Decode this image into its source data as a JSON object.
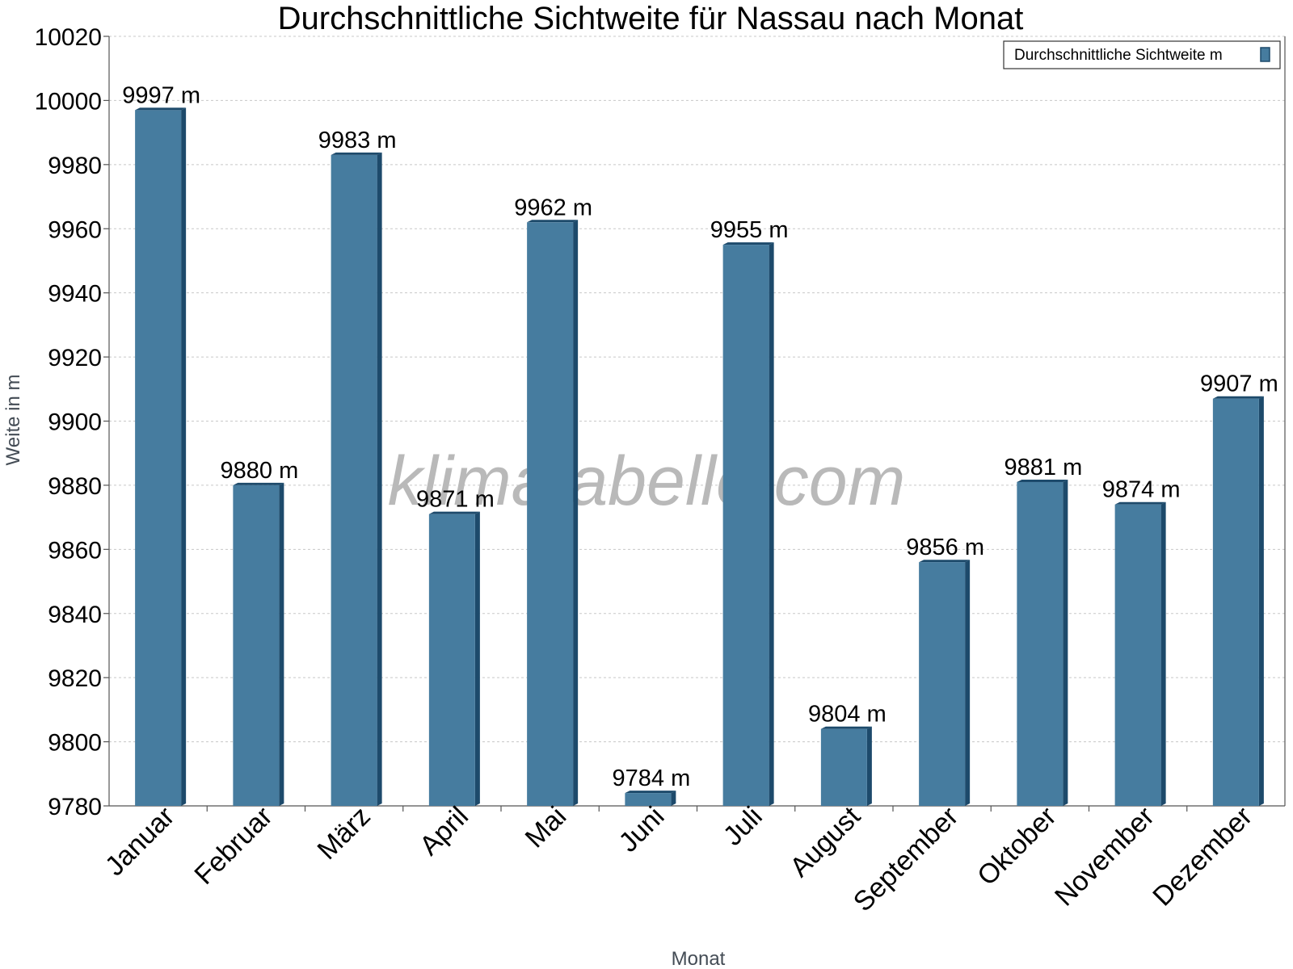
{
  "chart_data": {
    "type": "bar",
    "title": "Durchschnittliche Sichtweite für Nassau nach Monat",
    "xlabel": "Monat",
    "ylabel": "Weite in m",
    "categories": [
      "Januar",
      "Februar",
      "März",
      "April",
      "Mai",
      "Juni",
      "Juli",
      "August",
      "September",
      "Oktober",
      "November",
      "Dezember"
    ],
    "series": [
      {
        "name": "Durchschnittliche Sichtweite m",
        "values": [
          9997,
          9880,
          9983,
          9871,
          9962,
          9784,
          9955,
          9804,
          9856,
          9881,
          9874,
          9907
        ],
        "labels": [
          "9997 m",
          "9880 m",
          "9983 m",
          "9871 m",
          "9962 m",
          "9784 m",
          "9955 m",
          "9804 m",
          "9856 m",
          "9881 m",
          "9874 m",
          "9907 m"
        ]
      }
    ],
    "ylim": [
      9780,
      10020
    ],
    "yticks": [
      9780,
      9800,
      9820,
      9840,
      9860,
      9880,
      9900,
      9920,
      9940,
      9960,
      9980,
      10000,
      10020
    ],
    "grid": true,
    "legend_position": "top-right",
    "bar_color": "#467c9f",
    "bar_side_color": "#1d4a6b"
  },
  "watermark": "klimatabelle.com"
}
